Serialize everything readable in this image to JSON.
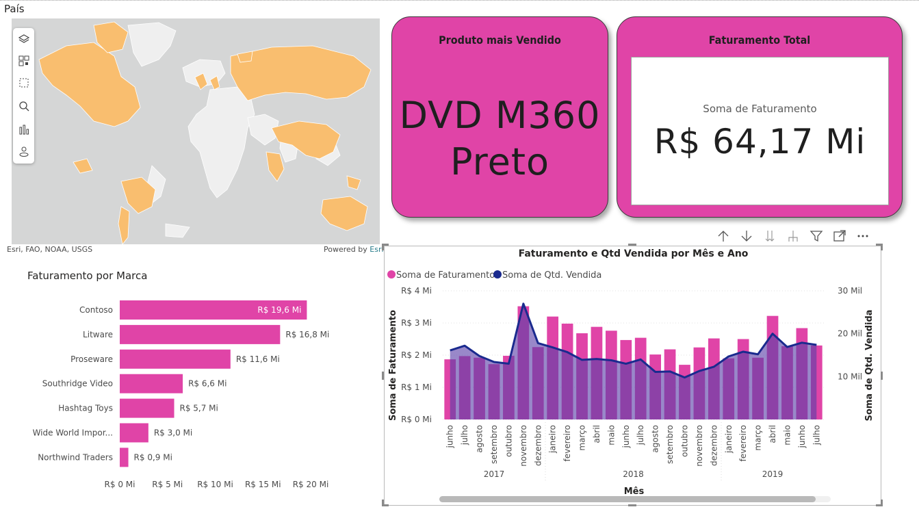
{
  "map": {
    "title": "País",
    "attribution": "Esri, FAO, NOAA, USGS",
    "powered_by_prefix": "Powered by ",
    "powered_by_brand": "Esri",
    "toolbar_icons": [
      "layers-icon",
      "qr-icon",
      "select-rect-icon",
      "search-icon",
      "bar-chart-icon",
      "user-location-icon"
    ],
    "highlight_color": "#f9be6f",
    "land_color": "#efefef",
    "water_color": "#d5d6d6"
  },
  "cards": {
    "produto": {
      "title": "Produto mais Vendido",
      "value_line1": "DVD M360",
      "value_line2": "Preto"
    },
    "faturamento": {
      "title": "Faturamento Total",
      "label": "Soma de Faturamento",
      "value": "R$ 64,17 Mi"
    },
    "bg_color": "#e044a7"
  },
  "visual_header_icons": [
    "arrow-up-icon",
    "arrow-down-icon",
    "double-arrow-down-icon",
    "expand-hierarchy-icon",
    "filter-icon",
    "focus-mode-icon",
    "more-options-icon"
  ],
  "bar_chart": {
    "title": "Faturamento por Marca",
    "color": "#e044a7",
    "chart_data": {
      "type": "bar",
      "orientation": "horizontal",
      "categories": [
        "Contoso",
        "Litware",
        "Proseware",
        "Southridge Video",
        "Hashtag Toys",
        "Wide World Impor...",
        "Northwind Traders"
      ],
      "values": [
        19.6,
        16.8,
        11.6,
        6.6,
        5.7,
        3.0,
        0.9
      ],
      "data_labels": [
        "R$ 19,6 Mi",
        "R$ 16,8 Mi",
        "R$ 11,6 Mi",
        "R$ 6,6 Mi",
        "R$ 5,7 Mi",
        "R$ 3,0 Mi",
        "R$ 0,9 Mi"
      ],
      "xlim": [
        0,
        20
      ],
      "x_ticks": [
        "R$ 0 Mi",
        "R$ 5 Mi",
        "R$ 10 Mi",
        "R$ 15 Mi",
        "R$ 20 Mi"
      ]
    }
  },
  "combo_chart": {
    "title": "Faturamento e Qtd Vendida por Mês e Ano",
    "legend": [
      {
        "name": "Soma de Faturamento",
        "color": "#e044a7"
      },
      {
        "name": "Soma de Qtd. Vendida",
        "color": "#1a2a8e"
      }
    ],
    "y_left_label": "Soma de Faturamento",
    "y_right_label": "Soma de Qtd. Vendida",
    "x_label": "Mês",
    "y_left_ticks": [
      "R$ 0 Mi",
      "R$ 1 Mi",
      "R$ 2 Mi",
      "R$ 3 Mi",
      "R$ 4 Mi"
    ],
    "y_right_ticks": [
      "10 Mil",
      "20 Mil",
      "30 Mil"
    ],
    "chart_data": {
      "type": "bar+line",
      "x": [
        "junho",
        "julho",
        "agosto",
        "setembro",
        "outubro",
        "novembro",
        "dezembro",
        "janeiro",
        "fevereiro",
        "março",
        "abril",
        "maio",
        "junho",
        "julho",
        "agosto",
        "setembro",
        "outubro",
        "novembro",
        "dezembro",
        "janeiro",
        "fevereiro",
        "março",
        "abril",
        "maio",
        "junho",
        "julho"
      ],
      "years": [
        {
          "label": "2017",
          "start": 0,
          "end": 6
        },
        {
          "label": "2018",
          "start": 7,
          "end": 18
        },
        {
          "label": "2019",
          "start": 19,
          "end": 25
        }
      ],
      "series": [
        {
          "name": "Soma de Faturamento",
          "type": "bar",
          "unit": "R$ Mi",
          "ylim": [
            0,
            4
          ],
          "values": [
            1.87,
            1.97,
            1.92,
            1.72,
            1.98,
            3.52,
            2.25,
            3.2,
            2.98,
            2.68,
            2.88,
            2.76,
            2.47,
            2.54,
            2.02,
            2.18,
            1.7,
            2.24,
            2.52,
            1.9,
            2.5,
            1.92,
            3.22,
            2.28,
            2.84,
            2.3
          ]
        },
        {
          "name": "Soma de Qtd. Vendida",
          "type": "line",
          "unit": "Mil",
          "ylim": [
            0,
            30
          ],
          "values": [
            16.1,
            17.2,
            14.8,
            13.4,
            13.0,
            27.0,
            17.8,
            16.8,
            15.7,
            13.9,
            14.1,
            13.8,
            13.0,
            14.0,
            11.1,
            11.2,
            9.8,
            11.3,
            12.3,
            14.7,
            15.8,
            15.2,
            20.0,
            16.9,
            17.9,
            17.4
          ]
        }
      ]
    }
  }
}
